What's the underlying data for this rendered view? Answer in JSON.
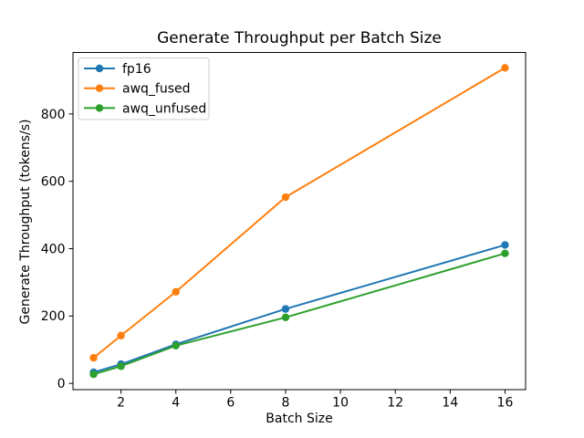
{
  "chart_data": {
    "type": "line",
    "title": "Generate Throughput per Batch Size",
    "xlabel": "Batch Size",
    "ylabel": "Generate Throughput (tokens/s)",
    "x": [
      1,
      2,
      4,
      8,
      16
    ],
    "series": [
      {
        "name": "fp16",
        "color": "#1f77b4",
        "values": [
          33,
          57,
          116,
          221,
          411
        ]
      },
      {
        "name": "awq_fused",
        "color": "#ff7f0e",
        "values": [
          76,
          142,
          272,
          553,
          937
        ]
      },
      {
        "name": "awq_unfused",
        "color": "#2ca02c",
        "values": [
          27,
          51,
          112,
          196,
          386
        ]
      }
    ],
    "xticks": [
      2,
      4,
      6,
      8,
      10,
      12,
      14,
      16
    ],
    "yticks": [
      0,
      200,
      400,
      600,
      800
    ],
    "xlim": [
      0.25,
      16.75
    ],
    "ylim": [
      -18.5,
      982.5
    ],
    "grid": false,
    "marker": "o",
    "legend": {
      "position": "upper left",
      "entries": [
        "fp16",
        "awq_fused",
        "awq_unfused"
      ]
    },
    "colors": {
      "background": "#ffffff",
      "frame": "#000000",
      "text": "#000000",
      "legend_border": "#cccccc"
    }
  }
}
